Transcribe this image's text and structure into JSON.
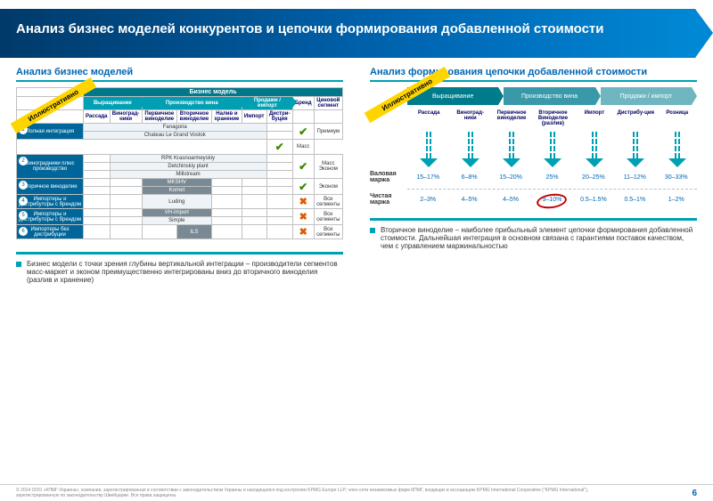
{
  "title": "Анализ бизнес моделей конкурентов  и цепочки формирования добавленной стоимости",
  "left_title": "Анализ бизнес моделей",
  "right_title": "Анализ формирования цепочки добавленной стоимости",
  "ribbon": "Иллюстративно",
  "bm_header_top": "Бизнес модель",
  "bm_groups": [
    "Выращивание",
    "Производство вина",
    "Продажи / импорт"
  ],
  "bm_cols": [
    "Рассада",
    "Виноград-ники",
    "Первичное виноделие",
    "Вторичное виноделие",
    "Налив и хранение",
    "Импорт",
    "Дистри-буция",
    "Бренд",
    "Ценовой сегмент"
  ],
  "bm_rows": [
    {
      "n": "1",
      "cat": "Полная интеграция",
      "companies": [
        {
          "name": "Fanagoria",
          "span": 6,
          "cls": "company"
        },
        {
          "name": "Chateau Le Grand Vostok",
          "span": 6,
          "cls": "company"
        }
      ],
      "tick": "✔",
      "seg": "Премиум"
    },
    {
      "n": "",
      "cat": "",
      "companies": [],
      "tick": "✔",
      "seg": "Масс"
    },
    {
      "n": "2",
      "cat": "Виноградники плюс производство",
      "companies": [
        {
          "name": "RPK Krasnoarmeyskiy",
          "span": 5,
          "cls": "company"
        },
        {
          "name": "Detchinskiy plant",
          "span": 5,
          "cls": "company"
        },
        {
          "name": "Millstream",
          "span": 5,
          "cls": "company"
        }
      ],
      "tick": "✔",
      "seg": "Масс Эконом"
    },
    {
      "n": "3",
      "cat": "Вторичное виноделие",
      "companies": [
        {
          "name": "MKSHV",
          "span": 2,
          "cls": "company steel"
        },
        {
          "name": "Kornet",
          "span": 2,
          "cls": "company steel"
        }
      ],
      "tick": "✔",
      "seg": "Эконом"
    },
    {
      "n": "4",
      "cat": "Импортеры и дистрибуторы с брендом",
      "companies": [
        {
          "name": "Luding",
          "span": 2,
          "cls": "company"
        }
      ],
      "tick": "✖",
      "seg": "Все сегменты"
    },
    {
      "n": "5",
      "cat": "Импортеры и дистрибуторы с брендом",
      "companies": [
        {
          "name": "VH-Import",
          "span": 2,
          "cls": "company steel"
        },
        {
          "name": "Simple",
          "span": 2,
          "cls": "company"
        }
      ],
      "tick": "✖",
      "seg": "Все сегменты"
    },
    {
      "n": "6",
      "cat": "Импортеры без дистрибуции",
      "companies": [
        {
          "name": "ILS",
          "span": 1,
          "cls": "company steel"
        }
      ],
      "tick": "✖",
      "seg": "Все сегменты"
    }
  ],
  "chain_stages": [
    "Выращивание",
    "Производство вина",
    "Продажи / импорт"
  ],
  "chain_cols": [
    "Рассада",
    "Виноград-ники",
    "Первичное виноделие",
    "Вторичное Виноделие (разлив)",
    "Импорт",
    "Дистрибу-ция",
    "Розница"
  ],
  "gross_label": "Валовая маржа",
  "gross": [
    "15–17%",
    "6–8%",
    "15–20%",
    "25%",
    "20–25%",
    "11–12%",
    "30–33%"
  ],
  "net_label": "Чистая маржа",
  "net": [
    "2–3%",
    "4–5%",
    "4–5%",
    "9–10%",
    "0.5–1.5%",
    "0.5–1%",
    "1–2%"
  ],
  "highlight_col": 3,
  "bullet_left": "Бизнес модели с точки зрения глубины вертикальной интеграции – производители сегментов масс-маркет и эконом преимущественно интегрированы вниз до вторичного виноделия (разлив и хранение)",
  "bullet_right": "Вторичное виноделие – наиболее прибыльный элемент цепочки формирования добавленной стоимости. Дальнейшая интеграция в основном связана с гарантиями поставок качеством, чем с управлением маржинальностью",
  "copyright": "© 2014 ООО «КПМГ-Украина», компания, зарегистрированная в соответствии с законодательством Украины и находящаяся под контролем KPMG Europe LLP; член сети независимых фирм КПМГ, входящих в ассоциацию KPMG International Cooperative (\"KPMG International\"), зарегистрированную по законодательству Швейцарии. Все права защищены.",
  "page": "6"
}
